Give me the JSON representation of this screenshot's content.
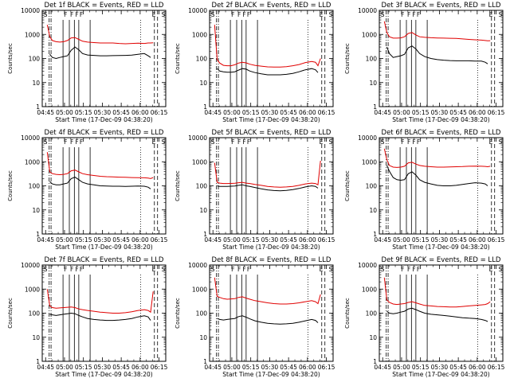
{
  "chart_data": {
    "type": "line",
    "yscale": "log",
    "ylabel": "Counts/sec",
    "xlabel": "Start Time (17-Dec-09 04:38:20)",
    "ylim": [
      1,
      10000
    ],
    "ytick_labels": [
      "1",
      "10",
      "100",
      "1000",
      "10000"
    ],
    "xtick_labels": [
      "04:45",
      "05:00",
      "05:15",
      "05:30",
      "05:45",
      "06:00",
      "06:15"
    ],
    "xlim_minutes": [
      4.0,
      102.0
    ],
    "series_colors": {
      "events": "#000000",
      "lld": "#e00000"
    },
    "attenuator_markers": [
      "F",
      "E",
      "S"
    ],
    "vertical_lines_minutes": {
      "dash_dot": [
        9.5,
        11.0
      ],
      "solid": [
        20.5,
        25.5,
        29.5,
        33.0,
        42.0
      ],
      "dotted": [
        82.0
      ],
      "dashed": [
        93.0,
        95.5
      ]
    },
    "panels": [
      {
        "title": "Det 1f BLACK = Events, RED = LLD",
        "x": [
          6,
          8,
          10,
          12,
          15,
          18,
          21,
          24,
          27,
          30,
          33,
          36,
          40,
          45,
          50,
          55,
          60,
          65,
          70,
          75,
          80,
          85,
          88,
          90,
          92
        ],
        "events": [
          null,
          null,
          150,
          110,
          100,
          110,
          120,
          130,
          220,
          300,
          230,
          160,
          140,
          135,
          130,
          130,
          132,
          133,
          135,
          138,
          150,
          160,
          130,
          110,
          null
        ],
        "lld": [
          null,
          2500,
          800,
          560,
          500,
          480,
          500,
          560,
          720,
          740,
          620,
          520,
          480,
          460,
          440,
          440,
          440,
          420,
          410,
          420,
          430,
          420,
          440,
          440,
          450
        ]
      },
      {
        "title": "Det 2f BLACK = Events, RED = LLD",
        "x": [
          6,
          8,
          10,
          12,
          15,
          18,
          21,
          24,
          27,
          30,
          33,
          36,
          40,
          45,
          50,
          55,
          60,
          65,
          70,
          75,
          80,
          85,
          88,
          90,
          92
        ],
        "events": [
          null,
          null,
          38,
          30,
          28,
          27,
          27,
          28,
          33,
          38,
          36,
          30,
          26,
          23,
          21,
          21,
          21,
          22,
          24,
          28,
          34,
          38,
          34,
          26,
          null
        ],
        "lld": [
          null,
          2500,
          90,
          65,
          52,
          50,
          50,
          55,
          65,
          70,
          66,
          58,
          52,
          48,
          45,
          44,
          44,
          46,
          50,
          56,
          68,
          75,
          70,
          50,
          100
        ]
      },
      {
        "title": "Det 3f BLACK = Events, RED = LLD",
        "x": [
          6,
          8,
          10,
          12,
          15,
          18,
          21,
          24,
          27,
          30,
          33,
          36,
          40,
          45,
          50,
          55,
          60,
          65,
          70,
          75,
          80,
          85,
          88,
          90,
          92
        ],
        "events": [
          null,
          null,
          300,
          160,
          110,
          120,
          130,
          150,
          280,
          330,
          250,
          160,
          120,
          100,
          90,
          85,
          82,
          80,
          80,
          80,
          78,
          78,
          70,
          60,
          null
        ],
        "lld": [
          null,
          3500,
          1200,
          800,
          700,
          700,
          720,
          800,
          1100,
          1200,
          950,
          800,
          760,
          730,
          710,
          700,
          690,
          680,
          650,
          620,
          600,
          580,
          560,
          540,
          550
        ]
      },
      {
        "title": "Det 4f BLACK = Events, RED = LLD",
        "x": [
          6,
          8,
          10,
          12,
          15,
          18,
          21,
          24,
          27,
          30,
          33,
          36,
          40,
          45,
          50,
          55,
          60,
          65,
          70,
          75,
          80,
          85,
          88,
          90,
          92
        ],
        "events": [
          null,
          null,
          150,
          120,
          110,
          110,
          120,
          130,
          200,
          230,
          180,
          140,
          120,
          110,
          100,
          98,
          96,
          96,
          95,
          96,
          98,
          96,
          88,
          75,
          null
        ],
        "lld": [
          null,
          2500,
          380,
          320,
          300,
          290,
          300,
          320,
          420,
          450,
          380,
          320,
          290,
          270,
          250,
          240,
          235,
          230,
          225,
          220,
          218,
          215,
          210,
          200,
          220
        ]
      },
      {
        "title": "Det 5f BLACK = Events, RED = LLD",
        "x": [
          6,
          8,
          10,
          12,
          15,
          18,
          21,
          24,
          27,
          30,
          33,
          36,
          40,
          45,
          50,
          55,
          60,
          65,
          70,
          75,
          80,
          85,
          88,
          90,
          92
        ],
        "events": [
          null,
          null,
          100,
          95,
          95,
          95,
          96,
          98,
          105,
          110,
          100,
          95,
          85,
          75,
          68,
          64,
          62,
          65,
          70,
          78,
          90,
          100,
          95,
          80,
          null
        ],
        "lld": [
          null,
          900,
          140,
          130,
          125,
          125,
          126,
          128,
          135,
          140,
          130,
          125,
          115,
          105,
          95,
          90,
          88,
          90,
          95,
          105,
          120,
          130,
          125,
          110,
          1100
        ]
      },
      {
        "title": "Det 6f BLACK = Events, RED = LLD",
        "x": [
          6,
          8,
          10,
          12,
          15,
          18,
          21,
          24,
          27,
          30,
          33,
          36,
          40,
          45,
          50,
          55,
          60,
          65,
          70,
          75,
          80,
          85,
          88,
          90,
          92
        ],
        "events": [
          null,
          null,
          700,
          400,
          220,
          180,
          170,
          180,
          320,
          380,
          280,
          180,
          140,
          120,
          105,
          100,
          100,
          105,
          115,
          125,
          135,
          130,
          120,
          100,
          null
        ],
        "lld": [
          null,
          3500,
          1200,
          700,
          600,
          580,
          600,
          650,
          900,
          950,
          800,
          700,
          650,
          620,
          600,
          600,
          610,
          620,
          630,
          650,
          660,
          650,
          640,
          620,
          650
        ]
      },
      {
        "title": "Det 7f BLACK = Events, RED = LLD",
        "x": [
          6,
          8,
          10,
          12,
          15,
          18,
          21,
          24,
          27,
          30,
          33,
          36,
          40,
          45,
          50,
          55,
          60,
          65,
          70,
          75,
          80,
          85,
          88,
          90,
          92
        ],
        "events": [
          null,
          null,
          90,
          85,
          80,
          85,
          90,
          95,
          100,
          95,
          80,
          70,
          60,
          55,
          52,
          50,
          50,
          52,
          55,
          60,
          70,
          78,
          70,
          50,
          null
        ],
        "lld": [
          null,
          1000,
          200,
          170,
          160,
          165,
          170,
          175,
          180,
          170,
          150,
          140,
          130,
          120,
          110,
          105,
          100,
          100,
          105,
          115,
          130,
          140,
          130,
          110,
          800
        ]
      },
      {
        "title": "Det 8f BLACK = Events, RED = LLD",
        "x": [
          6,
          8,
          10,
          12,
          15,
          18,
          21,
          24,
          27,
          30,
          33,
          36,
          40,
          45,
          50,
          55,
          60,
          65,
          70,
          75,
          80,
          85,
          88,
          90,
          92
        ],
        "events": [
          null,
          null,
          60,
          55,
          52,
          55,
          58,
          60,
          72,
          78,
          68,
          58,
          48,
          42,
          38,
          36,
          35,
          36,
          38,
          42,
          48,
          55,
          50,
          40,
          null
        ],
        "lld": [
          null,
          3000,
          500,
          450,
          400,
          380,
          390,
          400,
          450,
          480,
          420,
          380,
          330,
          300,
          270,
          250,
          240,
          240,
          250,
          270,
          300,
          330,
          300,
          250,
          600
        ]
      },
      {
        "title": "Det 9f BLACK = Events, RED = LLD",
        "x": [
          6,
          8,
          10,
          12,
          15,
          18,
          21,
          24,
          27,
          30,
          33,
          36,
          40,
          45,
          50,
          55,
          60,
          65,
          70,
          75,
          80,
          85,
          88,
          90,
          92
        ],
        "events": [
          null,
          null,
          120,
          100,
          95,
          100,
          110,
          120,
          150,
          160,
          140,
          120,
          100,
          90,
          85,
          80,
          75,
          70,
          65,
          62,
          60,
          55,
          50,
          45,
          null
        ],
        "lld": [
          null,
          3000,
          350,
          280,
          240,
          230,
          240,
          250,
          280,
          300,
          270,
          240,
          210,
          200,
          190,
          185,
          180,
          180,
          190,
          200,
          210,
          220,
          230,
          250,
          300
        ]
      }
    ]
  }
}
